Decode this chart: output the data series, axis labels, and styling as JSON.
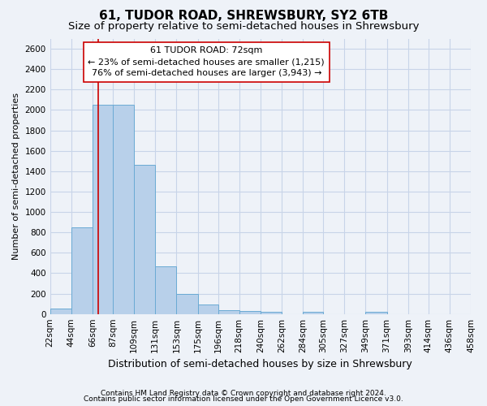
{
  "title": "61, TUDOR ROAD, SHREWSBURY, SY2 6TB",
  "subtitle": "Size of property relative to semi-detached houses in Shrewsbury",
  "xlabel": "Distribution of semi-detached houses by size in Shrewsbury",
  "ylabel": "Number of semi-detached properties",
  "footer1": "Contains HM Land Registry data © Crown copyright and database right 2024.",
  "footer2": "Contains public sector information licensed under the Open Government Licence v3.0.",
  "annotation_title": "61 TUDOR ROAD: 72sqm",
  "annotation_line1": "← 23% of semi-detached houses are smaller (1,215)",
  "annotation_line2": "76% of semi-detached houses are larger (3,943) →",
  "property_size": 72,
  "bar_edges": [
    22,
    44,
    66,
    87,
    109,
    131,
    153,
    175,
    196,
    218,
    240,
    262,
    284,
    305,
    327,
    349,
    371,
    393,
    414,
    436,
    458
  ],
  "bar_values": [
    50,
    850,
    2050,
    2050,
    1460,
    470,
    200,
    95,
    40,
    30,
    20,
    0,
    20,
    0,
    0,
    25,
    0,
    0,
    0,
    0
  ],
  "bar_color": "#b8d0ea",
  "bar_edge_color": "#6aaad4",
  "vline_color": "#cc0000",
  "vline_x": 72,
  "ylim": [
    0,
    2700
  ],
  "yticks": [
    0,
    200,
    400,
    600,
    800,
    1000,
    1200,
    1400,
    1600,
    1800,
    2000,
    2200,
    2400,
    2600
  ],
  "grid_color": "#c8d4e8",
  "background_color": "#eef2f8",
  "title_fontsize": 11,
  "subtitle_fontsize": 9.5,
  "xlabel_fontsize": 9,
  "ylabel_fontsize": 8,
  "tick_fontsize": 7.5,
  "annotation_fontsize": 8,
  "footer_fontsize": 6.5
}
